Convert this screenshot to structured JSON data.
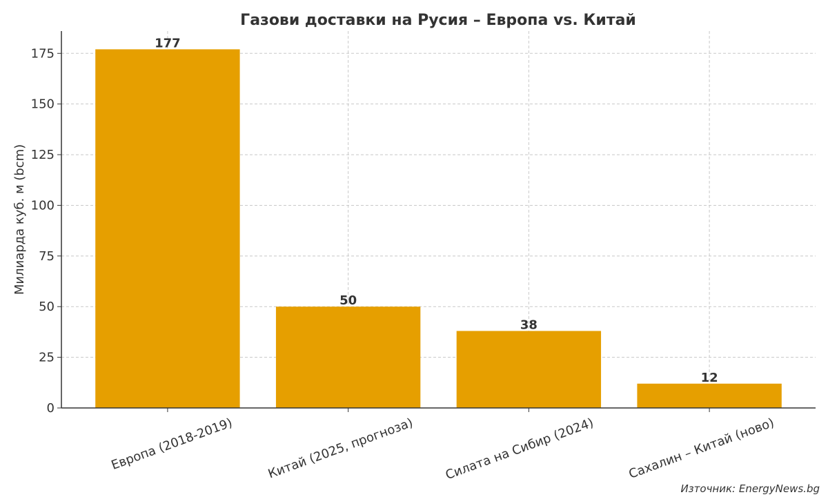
{
  "chart_data": {
    "type": "bar",
    "title": "Газови доставки на Русия – Европа vs. Китай",
    "y_label": "Милиарда куб. м (bcm)",
    "categories": [
      "Европа (2018-2019)",
      "Китай (2025, прогноза)",
      "Силата на Сибир (2024)",
      "Сахалин – Китай (ново)"
    ],
    "values": [
      177,
      50,
      38,
      12
    ],
    "color": "#e69f00",
    "ylim": [
      0,
      186
    ],
    "yticks": [
      0,
      25,
      50,
      75,
      100,
      125,
      150,
      175
    ],
    "grid": true,
    "source": "Източник: EnergyNews.bg"
  }
}
